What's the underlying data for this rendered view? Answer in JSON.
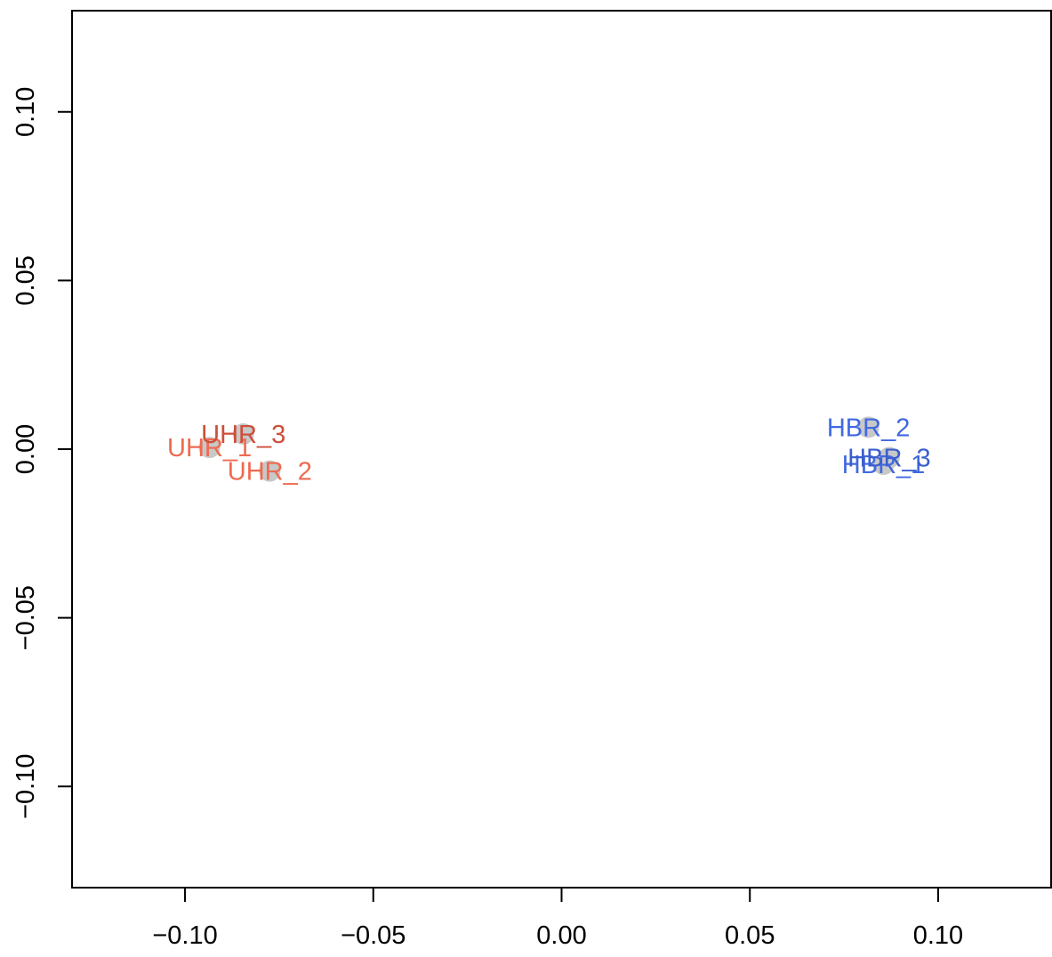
{
  "chart_data": {
    "type": "scatter",
    "title": "",
    "xlabel": "",
    "ylabel": "",
    "xlim": [
      -0.13,
      0.13
    ],
    "ylim": [
      -0.13,
      0.13
    ],
    "x_ticks": [
      -0.1,
      -0.05,
      0.0,
      0.05,
      0.1
    ],
    "x_tick_labels": [
      "−0.10",
      "−0.05",
      "0.00",
      "0.05",
      "0.10"
    ],
    "y_ticks": [
      -0.1,
      -0.05,
      0.0,
      0.05,
      0.1
    ],
    "y_tick_labels": [
      "−0.10",
      "−0.05",
      "0.00",
      "0.05",
      "0.10"
    ],
    "grid": false,
    "marker_color": "#c8c8c8",
    "points": [
      {
        "label": "UHR_1",
        "x": -0.0935,
        "y": 0.0005,
        "color": "#ee6a50"
      },
      {
        "label": "UHR_2",
        "x": -0.0775,
        "y": -0.0065,
        "color": "#ee6a50"
      },
      {
        "label": "UHR_3",
        "x": -0.0845,
        "y": 0.0045,
        "color": "#cd4f39"
      },
      {
        "label": "HBR_1",
        "x": 0.0855,
        "y": -0.0045,
        "color": "#4169e1"
      },
      {
        "label": "HBR_2",
        "x": 0.0815,
        "y": 0.0065,
        "color": "#4169e1"
      },
      {
        "label": "HBR_3",
        "x": 0.087,
        "y": -0.0025,
        "color": "#3a5fcd"
      }
    ]
  }
}
